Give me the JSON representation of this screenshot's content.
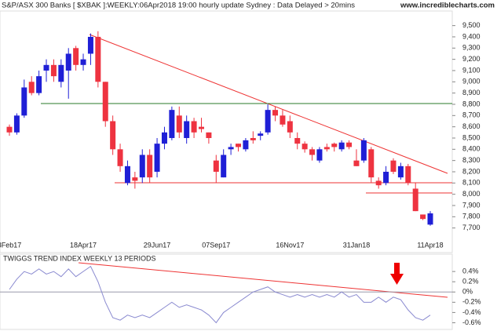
{
  "chart_data": [
    {
      "type": "candlestick",
      "title": "S&P/ASX 300 Banks [ $XBAK ]:WEEKLY:06Apr2018 19:00 hourly update Sydney : Data Delayed > 20mins",
      "subtitle": "www.incrediblecharts.com",
      "up_color": "#1f1fd6",
      "down_color": "#ee3340",
      "categories": [
        "8Feb17",
        null,
        null,
        null,
        null,
        null,
        null,
        null,
        null,
        null,
        "18Apr17",
        null,
        null,
        null,
        null,
        null,
        null,
        null,
        null,
        null,
        "29Jun17",
        null,
        null,
        null,
        null,
        null,
        null,
        null,
        "07Sep17",
        null,
        null,
        null,
        null,
        null,
        null,
        null,
        null,
        null,
        "16Nov17",
        null,
        null,
        null,
        null,
        null,
        null,
        null,
        null,
        "31Jan18",
        null,
        null,
        null,
        null,
        null,
        null,
        null,
        null,
        null,
        "11Apr18"
      ],
      "open": [
        8600,
        8550,
        8700,
        9000,
        8900,
        9100,
        9150,
        9000,
        9100,
        9300,
        9150,
        9250,
        9400,
        9000,
        8650,
        8400,
        8100,
        8150,
        8150,
        8350,
        8200,
        8450,
        8500,
        8700,
        8500,
        8650,
        8600,
        8550,
        8300,
        8150,
        8400,
        8450,
        8400,
        8500,
        8520,
        8550,
        8750,
        8700,
        8650,
        8500,
        8450,
        8400,
        8300,
        8420,
        8450,
        8400,
        8460,
        8300,
        8300,
        8400,
        8120,
        8100,
        8300,
        8150,
        8250,
        8050,
        7820,
        7730
      ],
      "high": [
        8620,
        8720,
        9020,
        9050,
        9100,
        9200,
        9200,
        9200,
        9300,
        9320,
        9250,
        9430,
        9450,
        9000,
        8700,
        8450,
        8300,
        8200,
        8400,
        8400,
        8500,
        8600,
        8780,
        8780,
        8700,
        8680,
        8680,
        8550,
        8350,
        8400,
        8450,
        8450,
        8500,
        8560,
        8560,
        8800,
        8780,
        8750,
        8700,
        8550,
        8470,
        8420,
        8420,
        8450,
        8460,
        8480,
        8480,
        8400,
        8500,
        8420,
        8150,
        8250,
        8320,
        8280,
        8270,
        8100,
        7820,
        7850
      ],
      "low": [
        8520,
        8530,
        8680,
        8880,
        8880,
        9000,
        9000,
        8950,
        8850,
        9100,
        9100,
        9150,
        8950,
        8600,
        8350,
        8200,
        8080,
        8050,
        8100,
        8100,
        8150,
        8400,
        8480,
        8500,
        8450,
        8500,
        8550,
        8450,
        8100,
        8150,
        8350,
        8380,
        8380,
        8450,
        8480,
        8530,
        8650,
        8600,
        8500,
        8400,
        8370,
        8300,
        8280,
        8380,
        8380,
        8380,
        8400,
        8250,
        8280,
        8100,
        8050,
        8080,
        8180,
        8130,
        8080,
        7850,
        7770,
        7720
      ],
      "close": [
        8550,
        8700,
        8950,
        8900,
        9050,
        9150,
        9050,
        9150,
        9250,
        9150,
        9200,
        9400,
        9000,
        8650,
        8400,
        8250,
        8250,
        8120,
        8350,
        8150,
        8450,
        8550,
        8750,
        8550,
        8650,
        8550,
        8580,
        8500,
        8200,
        8350,
        8420,
        8420,
        8480,
        8480,
        8540,
        8750,
        8700,
        8620,
        8550,
        8450,
        8400,
        8350,
        8400,
        8400,
        8420,
        8460,
        8420,
        8250,
        8480,
        8150,
        8080,
        8200,
        8200,
        8250,
        8100,
        7850,
        7780,
        7830
      ],
      "ylim": [
        7600,
        9630
      ],
      "yticks": [
        {
          "value": 7700,
          "label": "7,700"
        },
        {
          "value": 7800,
          "label": "7,800"
        },
        {
          "value": 7900,
          "label": "7,900"
        },
        {
          "value": 8000,
          "label": "8,000"
        },
        {
          "value": 8100,
          "label": "8,100"
        },
        {
          "value": 8200,
          "label": "8,200"
        },
        {
          "value": 8300,
          "label": "8,300"
        },
        {
          "value": 8400,
          "label": "8,400"
        },
        {
          "value": 8500,
          "label": "8,500"
        },
        {
          "value": 8600,
          "label": "8,600"
        },
        {
          "value": 8700,
          "label": "8,700"
        },
        {
          "value": 8800,
          "label": "8,800"
        },
        {
          "value": 8900,
          "label": "8,900"
        },
        {
          "value": 9000,
          "label": "9,000"
        },
        {
          "value": 9100,
          "label": "9,100"
        },
        {
          "value": 9200,
          "label": "9,200"
        },
        {
          "value": 9300,
          "label": "9,300"
        },
        {
          "value": 9400,
          "label": "9,400"
        },
        {
          "value": 9500,
          "label": "9,500"
        }
      ]
    },
    {
      "type": "line",
      "title": "TWIGGS TREND INDEX WEEKLY 13 PERIODS",
      "color": "#8a8ad0",
      "values": [
        0.05,
        0.25,
        0.4,
        0.35,
        0.45,
        0.35,
        0.4,
        0.3,
        0.45,
        0.3,
        0.4,
        0.5,
        0.2,
        -0.2,
        -0.5,
        -0.55,
        -0.45,
        -0.5,
        -0.45,
        -0.5,
        -0.4,
        -0.3,
        -0.2,
        -0.3,
        -0.25,
        -0.3,
        -0.35,
        -0.45,
        -0.6,
        -0.4,
        -0.3,
        -0.2,
        -0.1,
        0,
        0.05,
        0.1,
        0,
        -0.05,
        -0.1,
        -0.05,
        -0.1,
        -0.05,
        -0.1,
        -0.05,
        -0.1,
        0,
        -0.1,
        -0.05,
        -0.2,
        -0.2,
        -0.1,
        -0.2,
        -0.1,
        -0.15,
        -0.35,
        -0.5,
        -0.55,
        -0.45
      ],
      "ylim": [
        -0.7,
        0.54
      ],
      "yticks": [
        {
          "value": -0.6,
          "label": "-0.6%"
        },
        {
          "value": -0.4,
          "label": "-0.4%"
        },
        {
          "value": -0.2,
          "label": "-0.2%"
        },
        {
          "value": 0,
          "label": "0%"
        },
        {
          "value": 0.2,
          "label": "0.2%"
        },
        {
          "value": 0.4,
          "label": "0.4%"
        }
      ]
    }
  ]
}
